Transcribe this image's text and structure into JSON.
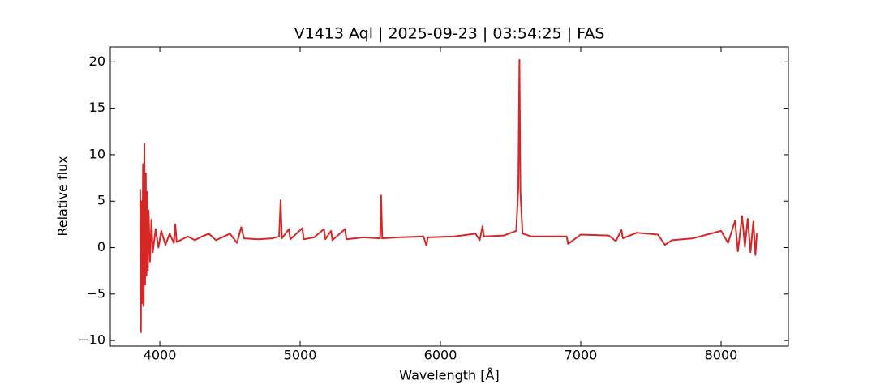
{
  "chart_data": {
    "type": "line",
    "title": "V1413 Aql | 2025-09-23 | 03:54:25 | FAS",
    "xlabel": "Wavelength [Å]",
    "ylabel": "Relative flux",
    "xlim": [
      3647,
      8480
    ],
    "ylim": [
      -10.6,
      21.6
    ],
    "xticks": [
      4000,
      5000,
      6000,
      7000,
      8000
    ],
    "yticks": [
      {
        "value": -10,
        "label": "−10"
      },
      {
        "value": -5,
        "label": "−5"
      },
      0,
      5,
      10,
      15,
      20
    ],
    "x": [
      3860,
      3865,
      3870,
      3875,
      3880,
      3885,
      3890,
      3895,
      3900,
      3905,
      3910,
      3915,
      3920,
      3930,
      3940,
      3950,
      3970,
      3990,
      4010,
      4040,
      4070,
      4100,
      4110,
      4120,
      4200,
      4250,
      4300,
      4350,
      4400,
      4500,
      4550,
      4580,
      4600,
      4700,
      4800,
      4850,
      4861,
      4870,
      4920,
      4930,
      5016,
      5025,
      5100,
      5170,
      5180,
      5220,
      5230,
      5320,
      5330,
      5450,
      5570,
      5577,
      5585,
      5700,
      5880,
      5900,
      5910,
      6100,
      6250,
      6280,
      6300,
      6310,
      6450,
      6540,
      6555,
      6563,
      6570,
      6585,
      6650,
      6900,
      6910,
      7000,
      7200,
      7250,
      7290,
      7300,
      7400,
      7550,
      7600,
      7650,
      7800,
      7900,
      8000,
      8050,
      8100,
      8120,
      8150,
      8170,
      8190,
      8210,
      8230,
      8245,
      8255
    ],
    "series": [
      {
        "name": "flux",
        "color": "#d62728",
        "values": [
          6.3,
          -9.1,
          5,
          -6,
          9,
          -6.3,
          11.2,
          -4,
          8,
          -3,
          6,
          -2.5,
          4,
          -1.5,
          3,
          -0.5,
          2,
          0,
          1.8,
          0.3,
          1.5,
          0.5,
          2.5,
          0.6,
          1.2,
          0.8,
          1.2,
          1.5,
          0.8,
          1.5,
          0.5,
          2.2,
          1.0,
          0.9,
          1.0,
          1.2,
          5.1,
          1.0,
          2.0,
          0.9,
          2.1,
          0.9,
          1.1,
          2.0,
          0.9,
          1.8,
          0.8,
          2.0,
          0.9,
          1.1,
          1.0,
          5.6,
          1.0,
          1.1,
          1.2,
          0.2,
          1.1,
          1.2,
          1.5,
          0.8,
          2.3,
          1.2,
          1.3,
          1.8,
          6.5,
          20.2,
          6.0,
          1.5,
          1.2,
          1.2,
          0.4,
          1.4,
          1.3,
          0.7,
          1.9,
          1.0,
          1.6,
          1.4,
          0.3,
          0.8,
          1.0,
          1.4,
          1.8,
          0.5,
          2.9,
          -0.4,
          3.4,
          0.1,
          3.1,
          -0.5,
          2.8,
          -0.8,
          1.5
        ]
      }
    ]
  }
}
